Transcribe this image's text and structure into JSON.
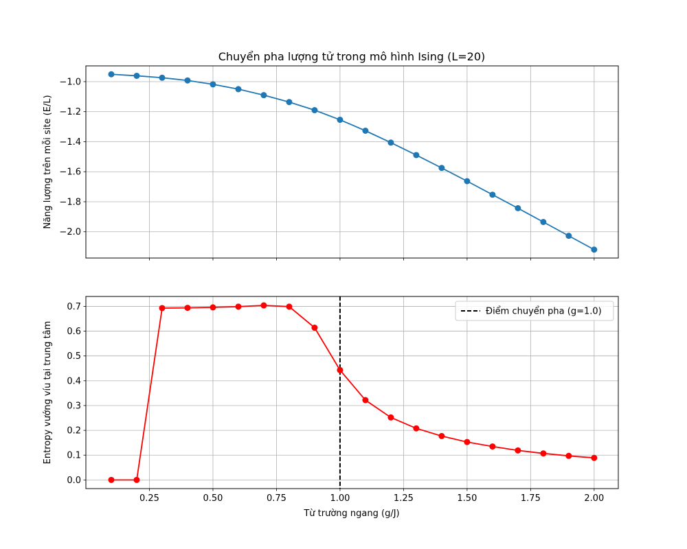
{
  "title": "Chuyển pha lượng tử trong mô hình Ising (L=20)",
  "xlabel": "Từ trường ngang (g/J)",
  "chart_data": [
    {
      "type": "line",
      "ylabel": "Năng lượng trên mỗi site (E/L)",
      "x": [
        0.1,
        0.2,
        0.3,
        0.4,
        0.5,
        0.6,
        0.7,
        0.8,
        0.9,
        1.0,
        1.1,
        1.2,
        1.3,
        1.4,
        1.5,
        1.6,
        1.7,
        1.8,
        1.9,
        2.0
      ],
      "series": [
        {
          "values": [
            -0.951,
            -0.961,
            -0.974,
            -0.992,
            -1.018,
            -1.05,
            -1.09,
            -1.136,
            -1.19,
            -1.254,
            -1.327,
            -1.406,
            -1.489,
            -1.575,
            -1.663,
            -1.753,
            -1.843,
            -1.935,
            -2.027,
            -2.119
          ],
          "color": "#1f77b4"
        }
      ],
      "xlim": [
        0.0,
        2.095
      ],
      "ylim": [
        -2.175,
        -0.895
      ],
      "yticks": [
        -1.0,
        -1.2,
        -1.4,
        -1.6,
        -1.8,
        -2.0
      ],
      "ytick_labels": [
        "−1.0",
        "−1.2",
        "−1.4",
        "−1.6",
        "−1.8",
        "−2.0"
      ],
      "grid": true
    },
    {
      "type": "line",
      "ylabel": "Entropy vướng víu tại trung tâm",
      "x": [
        0.1,
        0.2,
        0.3,
        0.4,
        0.5,
        0.6,
        0.7,
        0.8,
        0.9,
        1.0,
        1.1,
        1.2,
        1.3,
        1.4,
        1.5,
        1.6,
        1.7,
        1.8,
        1.9,
        2.0
      ],
      "series": [
        {
          "values": [
            0.0,
            0.0,
            0.693,
            0.694,
            0.696,
            0.699,
            0.704,
            0.699,
            0.614,
            0.443,
            0.322,
            0.252,
            0.208,
            0.177,
            0.153,
            0.135,
            0.119,
            0.107,
            0.097,
            0.089
          ],
          "color": "#ff0000"
        }
      ],
      "vline": {
        "x": 1.0,
        "label": "Điểm chuyển pha (g=1.0)",
        "color": "#000000",
        "style": "dashed"
      },
      "legend": "top-right",
      "xlim": [
        0.0,
        2.095
      ],
      "ylim": [
        -0.035,
        0.74
      ],
      "yticks": [
        0.0,
        0.1,
        0.2,
        0.3,
        0.4,
        0.5,
        0.6,
        0.7
      ],
      "ytick_labels": [
        "0.0",
        "0.1",
        "0.2",
        "0.3",
        "0.4",
        "0.5",
        "0.6",
        "0.7"
      ],
      "xticks": [
        0.25,
        0.5,
        0.75,
        1.0,
        1.25,
        1.5,
        1.75,
        2.0
      ],
      "xtick_labels": [
        "0.25",
        "0.50",
        "0.75",
        "1.00",
        "1.25",
        "1.50",
        "1.75",
        "2.00"
      ],
      "grid": true
    }
  ]
}
